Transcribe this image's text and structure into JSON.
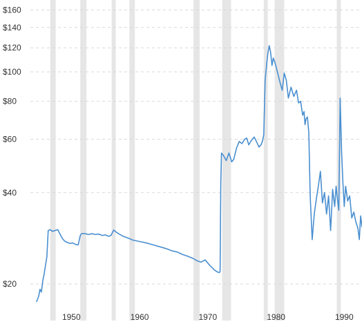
{
  "chart_data": {
    "type": "line",
    "title": "",
    "xlabel": "",
    "ylabel": "",
    "y_scale": "log",
    "ylim": [
      17,
      162
    ],
    "xlim": [
      1944.6,
      1992.6
    ],
    "grid": "horizontal dashed",
    "colors": {
      "line": "#4a8fd0",
      "recession_band": "#e6e6e6",
      "grid": "#d9d9d9",
      "text": "#333333"
    },
    "y_ticks": [
      {
        "value": 160,
        "label": "$160"
      },
      {
        "value": 140,
        "label": "$140"
      },
      {
        "value": 120,
        "label": "$120"
      },
      {
        "value": 100,
        "label": "$100"
      },
      {
        "value": 80,
        "label": "$80"
      },
      {
        "value": 60,
        "label": "$60"
      },
      {
        "value": 40,
        "label": "$40"
      },
      {
        "value": 20,
        "label": "$20"
      }
    ],
    "x_ticks": [
      {
        "value": 1950,
        "label": "1950"
      },
      {
        "value": 1960,
        "label": "1960"
      },
      {
        "value": 1970,
        "label": "1970"
      },
      {
        "value": 1980,
        "label": "1980"
      },
      {
        "value": 1990,
        "label": "1990"
      }
    ],
    "shaded_periods": [
      [
        1946.9,
        1947.7
      ],
      [
        1951.3,
        1952.2
      ],
      [
        1955.9,
        1956.5
      ],
      [
        1958.5,
        1959.3
      ],
      [
        1967.9,
        1968.8
      ],
      [
        1972.1,
        1973.4
      ],
      [
        1978.2,
        1978.8
      ],
      [
        1979.8,
        1981.2
      ],
      [
        1988.9,
        1989.5
      ]
    ],
    "series": [
      {
        "x": [
          1944.9,
          1945.2,
          1945.4,
          1945.6,
          1945.8,
          1946.0,
          1946.2,
          1946.4,
          1946.6,
          1946.9,
          1947.2,
          1947.6,
          1948.0,
          1948.4,
          1948.7,
          1949.0,
          1949.4,
          1949.8,
          1950.2,
          1950.6,
          1951.0,
          1951.3,
          1951.5,
          1952.0,
          1952.5,
          1953.0,
          1953.5,
          1954.0,
          1954.5,
          1955.0,
          1955.5,
          1955.8,
          1956.2,
          1956.6,
          1957.0,
          1957.6,
          1958.2,
          1959.0,
          1960.0,
          1961.0,
          1962.0,
          1963.0,
          1964.0,
          1964.8,
          1965.5,
          1966.3,
          1967.0,
          1967.8,
          1968.5,
          1969.0,
          1969.6,
          1970.3,
          1971.0,
          1971.4,
          1971.7,
          1971.8,
          1971.9,
          1972.0,
          1972.3,
          1972.7,
          1973.1,
          1973.5,
          1973.8,
          1974.2,
          1974.6,
          1975.0,
          1975.4,
          1975.7,
          1976.0,
          1976.4,
          1976.8,
          1977.2,
          1977.5,
          1977.8,
          1978.0,
          1978.2,
          1978.4,
          1978.6,
          1978.8,
          1979.0,
          1979.2,
          1979.4,
          1979.6,
          1979.8,
          1980.0,
          1980.3,
          1980.6,
          1980.9,
          1981.2,
          1981.5,
          1981.8,
          1982.2,
          1982.6,
          1983.0,
          1983.3,
          1983.6,
          1983.9,
          1984.1,
          1984.25,
          1984.4,
          1984.6,
          1984.8,
          1985.0,
          1985.3,
          1985.6,
          1985.9,
          1986.2,
          1986.5,
          1986.8,
          1987.1,
          1987.4,
          1987.7,
          1988.0,
          1988.3,
          1988.6,
          1988.8,
          1989.0,
          1989.2,
          1989.4,
          1989.6,
          1989.8,
          1990.0,
          1990.2,
          1990.5,
          1990.8,
          1991.1,
          1991.4,
          1991.7,
          1992.0,
          1992.2,
          1992.4,
          1992.6
        ],
        "y": [
          17.5,
          18.2,
          19.2,
          18.8,
          20.5,
          21.5,
          23.0,
          24.5,
          30.0,
          30.2,
          29.8,
          30.0,
          30.2,
          29.0,
          28.2,
          27.7,
          27.4,
          27.2,
          27.3,
          27.0,
          26.9,
          28.9,
          29.3,
          29.3,
          29.1,
          29.3,
          29.1,
          29.2,
          28.9,
          29.0,
          28.7,
          28.9,
          30.1,
          29.6,
          29.2,
          28.7,
          28.4,
          27.9,
          27.6,
          27.3,
          26.9,
          26.5,
          26.1,
          25.7,
          25.5,
          25.0,
          24.7,
          24.3,
          23.8,
          23.6,
          24.0,
          23.0,
          22.2,
          21.9,
          21.8,
          22.0,
          43.0,
          54.0,
          53.0,
          51.0,
          54.0,
          50.5,
          51.5,
          56.0,
          59.0,
          58.0,
          60.0,
          60.5,
          57.5,
          59.5,
          61.0,
          58.5,
          56.5,
          57.5,
          59.0,
          62.0,
          94.0,
          105.0,
          115.0,
          122.0,
          116.0,
          105.0,
          111.0,
          108.0,
          104.0,
          98.0,
          92.0,
          87.0,
          99.0,
          94.0,
          82.0,
          89.0,
          83.0,
          87.0,
          79.0,
          80.0,
          72.0,
          74.0,
          67.0,
          70.0,
          71.0,
          63.0,
          39.0,
          28.0,
          34.0,
          38.0,
          42.0,
          47.0,
          37.0,
          40.0,
          34.0,
          39.0,
          30.0,
          41.0,
          36.0,
          42.0,
          38.0,
          35.0,
          82.0,
          55.0,
          43.0,
          36.0,
          42.0,
          37.5,
          39.0,
          33.0,
          34.5,
          32.0,
          30.5,
          28.0,
          33.5,
          30.8
        ]
      }
    ]
  }
}
